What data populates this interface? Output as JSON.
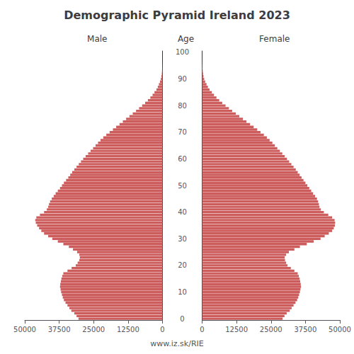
{
  "chart_data": {
    "type": "bar",
    "orientation": "horizontal",
    "title": "Demographic Pyramid Ireland 2023",
    "ylabel": "Age",
    "annotations": [
      "www.iz.sk/RIE"
    ],
    "categories": [
      0,
      1,
      2,
      3,
      4,
      5,
      6,
      7,
      8,
      9,
      10,
      11,
      12,
      13,
      14,
      15,
      16,
      17,
      18,
      19,
      20,
      21,
      22,
      23,
      24,
      25,
      26,
      27,
      28,
      29,
      30,
      31,
      32,
      33,
      34,
      35,
      36,
      37,
      38,
      39,
      40,
      41,
      42,
      43,
      44,
      45,
      46,
      47,
      48,
      49,
      50,
      51,
      52,
      53,
      54,
      55,
      56,
      57,
      58,
      59,
      60,
      61,
      62,
      63,
      64,
      65,
      66,
      67,
      68,
      69,
      70,
      71,
      72,
      73,
      74,
      75,
      76,
      77,
      78,
      79,
      80,
      81,
      82,
      83,
      84,
      85,
      86,
      87,
      88,
      89,
      90,
      91,
      92,
      93,
      94,
      95,
      96,
      97,
      98,
      99,
      100
    ],
    "series": [
      {
        "name": "Male",
        "color": "#cd5c5c",
        "values": [
          30500,
          31200,
          32000,
          33100,
          33800,
          34500,
          35200,
          35800,
          36200,
          36500,
          36800,
          37000,
          37200,
          37100,
          36900,
          36700,
          36400,
          36000,
          34500,
          33000,
          31500,
          30800,
          30200,
          30000,
          30200,
          31000,
          32500,
          34000,
          36000,
          38000,
          40000,
          41500,
          43000,
          44000,
          44800,
          45500,
          46000,
          46200,
          45800,
          44500,
          43000,
          42000,
          41500,
          41200,
          40800,
          40200,
          39500,
          38800,
          38000,
          37200,
          36500,
          35800,
          35000,
          34200,
          33500,
          32800,
          32000,
          31200,
          30400,
          29600,
          28800,
          27900,
          27000,
          26100,
          25200,
          24300,
          23400,
          22500,
          21500,
          20400,
          19200,
          18000,
          16800,
          15600,
          14400,
          13200,
          12000,
          10800,
          9600,
          8500,
          7400,
          6300,
          5300,
          4400,
          3600,
          2900,
          2200,
          1700,
          1300,
          900,
          600,
          400,
          250,
          160,
          100,
          60,
          35,
          20,
          10,
          5,
          3
        ]
      },
      {
        "name": "Female",
        "color": "#cd5c5c",
        "values": [
          29200,
          29900,
          30700,
          31800,
          32500,
          33200,
          33900,
          34500,
          34900,
          35200,
          35500,
          35700,
          35900,
          35800,
          35600,
          35400,
          35100,
          34700,
          33500,
          32200,
          31000,
          30500,
          30100,
          30000,
          30500,
          31500,
          33500,
          35500,
          38000,
          40500,
          43000,
          44500,
          46000,
          47200,
          47800,
          48200,
          48300,
          48100,
          47200,
          45800,
          44200,
          43100,
          42600,
          42400,
          42100,
          41700,
          41000,
          40300,
          39600,
          38900,
          38200,
          37500,
          36800,
          36100,
          35400,
          34700,
          34000,
          33200,
          32400,
          31600,
          30800,
          30000,
          29100,
          28200,
          27300,
          26400,
          25500,
          24500,
          23500,
          22400,
          21200,
          20000,
          18700,
          17400,
          16100,
          14800,
          13500,
          12200,
          10900,
          9700,
          8500,
          7300,
          6200,
          5200,
          4300,
          3500,
          2700,
          2100,
          1600,
          1100,
          750,
          500,
          320,
          200,
          125,
          75,
          45,
          25,
          12,
          6,
          3
        ]
      }
    ],
    "xlim": [
      0,
      50000
    ],
    "xticks": [
      0,
      12500,
      25000,
      37500,
      50000
    ],
    "ylim": [
      -0.5,
      100.5
    ],
    "yticks": [
      0,
      10,
      20,
      30,
      40,
      50,
      60,
      70,
      80,
      90,
      100
    ],
    "grid": false
  }
}
